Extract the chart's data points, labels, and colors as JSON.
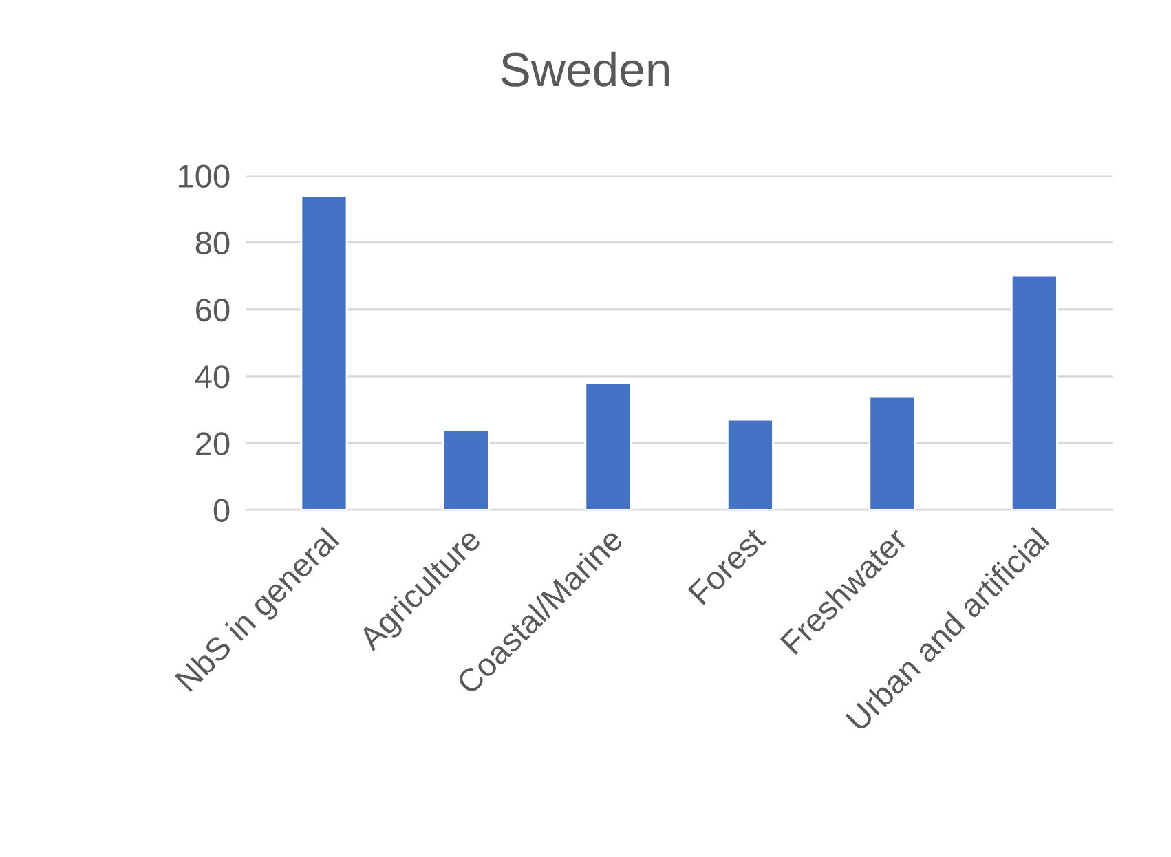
{
  "chart_data": {
    "type": "bar",
    "title": "Sweden",
    "categories": [
      "NbS in general",
      "Agriculture",
      "Coastal/Marine",
      "Forest",
      "Freshwater",
      "Urban and artificial"
    ],
    "values": [
      94,
      24,
      38,
      27,
      34,
      70
    ],
    "color": "#4472c4",
    "ylim": [
      0,
      100
    ],
    "yticks": [
      0,
      20,
      40,
      60,
      80,
      100
    ],
    "grid": "y",
    "legend": false
  }
}
